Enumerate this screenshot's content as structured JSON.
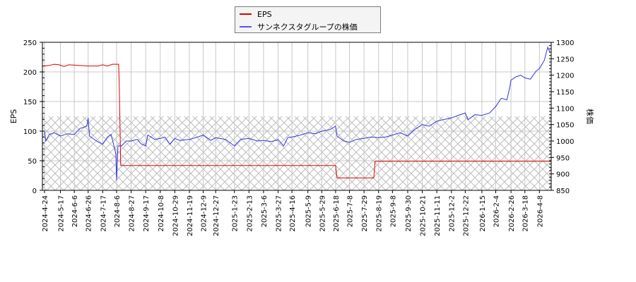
{
  "chart_data": {
    "type": "line",
    "title": "",
    "legend": {
      "position": "top-center",
      "entries": [
        {
          "label": "EPS",
          "color": "#e00000"
        },
        {
          "label": "サンネクスタグループの株価",
          "color": "#3333dd"
        }
      ]
    },
    "xlabel": "",
    "ylabel_left": "EPS",
    "ylabel_right": "株価",
    "ylim_left": [
      0,
      250
    ],
    "ylim_right": [
      850,
      1300
    ],
    "yticks_left": [
      0,
      50,
      100,
      150,
      200,
      250
    ],
    "yticks_right": [
      850,
      900,
      950,
      1000,
      1050,
      1100,
      1150,
      1200,
      1250,
      1300
    ],
    "xticks": [
      "2024-4-24",
      "2024-5-17",
      "2024-6-6",
      "2024-6-26",
      "2024-7-17",
      "2024-8-6",
      "2024-8-27",
      "2024-9-17",
      "2024-10-8",
      "2024-10-29",
      "2024-11-19",
      "2024-12-9",
      "2024-12-27",
      "2025-1-23",
      "2025-2-13",
      "2025-3-6",
      "2025-3-27",
      "2025-4-16",
      "2025-5-9",
      "2025-5-29",
      "2025-6-18",
      "2025-7-8",
      "2025-7-29",
      "2025-8-19",
      "2025-9-8",
      "2025-9-30",
      "2025-10-21",
      "2025-11-11",
      "2025-12-2",
      "2025-12-22",
      "2026-1-15",
      "2026-2-4",
      "2026-2-26",
      "2026-3-18",
      "2026-4-8"
    ],
    "grid": true,
    "hatch_band_left_axis": [
      0,
      125
    ],
    "series": [
      {
        "name": "EPS",
        "axis": "left",
        "color": "#e00000",
        "points": [
          [
            "2024-4-24",
            210
          ],
          [
            "2024-5-1",
            211
          ],
          [
            "2024-5-8",
            213
          ],
          [
            "2024-5-15",
            212
          ],
          [
            "2024-5-22",
            209
          ],
          [
            "2024-5-29",
            212
          ],
          [
            "2024-6-12",
            211
          ],
          [
            "2024-6-26",
            210
          ],
          [
            "2024-7-10",
            210
          ],
          [
            "2024-7-17",
            212
          ],
          [
            "2024-7-24",
            210
          ],
          [
            "2024-7-31",
            213
          ],
          [
            "2024-8-9",
            213
          ],
          [
            "2024-8-10",
            170
          ],
          [
            "2024-8-12",
            42
          ],
          [
            "2025-6-18",
            42
          ],
          [
            "2025-6-20",
            21
          ],
          [
            "2025-8-12",
            21
          ],
          [
            "2025-8-14",
            49
          ],
          [
            "2026-4-25",
            49
          ]
        ]
      },
      {
        "name": "サンネクスタグループの株価",
        "axis": "right",
        "color": "#3333dd",
        "points": [
          [
            "2024-4-24",
            1030
          ],
          [
            "2024-4-26",
            1000
          ],
          [
            "2024-5-1",
            1020
          ],
          [
            "2024-5-8",
            1025
          ],
          [
            "2024-5-17",
            1015
          ],
          [
            "2024-5-27",
            1022
          ],
          [
            "2024-6-6",
            1020
          ],
          [
            "2024-6-14",
            1038
          ],
          [
            "2024-6-24",
            1045
          ],
          [
            "2024-6-26",
            1070
          ],
          [
            "2024-6-28",
            1015
          ],
          [
            "2024-7-8",
            1000
          ],
          [
            "2024-7-17",
            990
          ],
          [
            "2024-7-24",
            1012
          ],
          [
            "2024-7-29",
            1020
          ],
          [
            "2024-8-1",
            995
          ],
          [
            "2024-8-5",
            960
          ],
          [
            "2024-8-6",
            880
          ],
          [
            "2024-8-8",
            985
          ],
          [
            "2024-8-13",
            985
          ],
          [
            "2024-8-20",
            1000
          ],
          [
            "2024-8-27",
            1000
          ],
          [
            "2024-9-5",
            1005
          ],
          [
            "2024-9-10",
            992
          ],
          [
            "2024-9-17",
            985
          ],
          [
            "2024-9-20",
            1018
          ],
          [
            "2024-9-30",
            1005
          ],
          [
            "2024-10-8",
            1008
          ],
          [
            "2024-10-15",
            1012
          ],
          [
            "2024-10-22",
            990
          ],
          [
            "2024-10-29",
            1008
          ],
          [
            "2024-11-5",
            1002
          ],
          [
            "2024-11-19",
            1005
          ],
          [
            "2024-11-28",
            1010
          ],
          [
            "2024-12-9",
            1018
          ],
          [
            "2024-12-20",
            1002
          ],
          [
            "2024-12-27",
            1010
          ],
          [
            "2025-1-10",
            1005
          ],
          [
            "2025-1-23",
            985
          ],
          [
            "2025-2-1",
            1005
          ],
          [
            "2025-2-13",
            1008
          ],
          [
            "2025-2-25",
            1000
          ],
          [
            "2025-3-6",
            1002
          ],
          [
            "2025-3-17",
            998
          ],
          [
            "2025-3-27",
            1004
          ],
          [
            "2025-4-4",
            985
          ],
          [
            "2025-4-10",
            1010
          ],
          [
            "2025-4-16",
            1012
          ],
          [
            "2025-4-28",
            1018
          ],
          [
            "2025-5-9",
            1025
          ],
          [
            "2025-5-20",
            1022
          ],
          [
            "2025-5-29",
            1030
          ],
          [
            "2025-6-10",
            1035
          ],
          [
            "2025-6-18",
            1045
          ],
          [
            "2025-6-20",
            1015
          ],
          [
            "2025-6-30",
            1000
          ],
          [
            "2025-7-8",
            996
          ],
          [
            "2025-7-18",
            1005
          ],
          [
            "2025-7-29",
            1008
          ],
          [
            "2025-8-8",
            1012
          ],
          [
            "2025-8-19",
            1010
          ],
          [
            "2025-8-29",
            1012
          ],
          [
            "2025-9-8",
            1018
          ],
          [
            "2025-9-19",
            1025
          ],
          [
            "2025-9-30",
            1015
          ],
          [
            "2025-10-10",
            1035
          ],
          [
            "2025-10-21",
            1050
          ],
          [
            "2025-10-31",
            1045
          ],
          [
            "2025-11-11",
            1060
          ],
          [
            "2025-11-20",
            1065
          ],
          [
            "2025-12-2",
            1070
          ],
          [
            "2025-12-12",
            1078
          ],
          [
            "2025-12-22",
            1085
          ],
          [
            "2025-12-26",
            1065
          ],
          [
            "2026-1-5",
            1080
          ],
          [
            "2026-1-15",
            1078
          ],
          [
            "2026-1-26",
            1085
          ],
          [
            "2026-2-4",
            1105
          ],
          [
            "2026-2-12",
            1130
          ],
          [
            "2026-2-20",
            1125
          ],
          [
            "2026-2-24",
            1160
          ],
          [
            "2026-2-26",
            1185
          ],
          [
            "2026-3-5",
            1195
          ],
          [
            "2026-3-12",
            1200
          ],
          [
            "2026-3-18",
            1192
          ],
          [
            "2026-3-26",
            1188
          ],
          [
            "2026-4-3",
            1212
          ],
          [
            "2026-4-8",
            1220
          ],
          [
            "2026-4-15",
            1245
          ],
          [
            "2026-4-20",
            1285
          ],
          [
            "2026-4-23",
            1270
          ]
        ]
      }
    ]
  }
}
